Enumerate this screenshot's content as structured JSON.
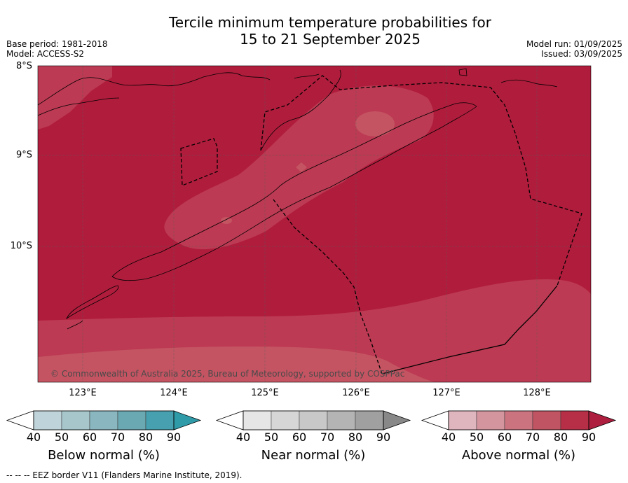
{
  "title_line1": "Tercile minimum temperature probabilities for",
  "title_line2": "15 to 21 September 2025",
  "base_period": "Base period: 1981-2018",
  "model": "Model: ACCESS-S2",
  "model_run": "Model run: 01/09/2025",
  "issued": "Issued: 03/09/2025",
  "lat_labels": [
    "8°S",
    "9°S",
    "10°S"
  ],
  "lon_labels": [
    "123°E",
    "124°E",
    "125°E",
    "126°E",
    "127°E",
    "128°E"
  ],
  "copyright": "© Commonwealth of Australia 2025, Bureau of Meteorology, supported by COSPPac",
  "footer": "--  --  -- EEZ border V11 (Flanders Marine Institute, 2019).",
  "colorbars": [
    {
      "title": "Below normal (%)",
      "ticks": [
        "40",
        "50",
        "60",
        "70",
        "80",
        "90"
      ],
      "colors": [
        "#bfd4da",
        "#a6c6cc",
        "#89b6bf",
        "#6aa8b2",
        "#47a0af",
        "#2f9aa8"
      ]
    },
    {
      "title": "Near normal (%)",
      "ticks": [
        "40",
        "50",
        "60",
        "70",
        "80",
        "90"
      ],
      "colors": [
        "#e6e6e6",
        "#d6d6d6",
        "#c8c8c8",
        "#b4b4b4",
        "#a0a0a0",
        "#888888"
      ]
    },
    {
      "title": "Above normal (%)",
      "ticks": [
        "40",
        "50",
        "60",
        "70",
        "80",
        "90"
      ],
      "colors": [
        "#e0b6be",
        "#d5959f",
        "#cb7480",
        "#c15462",
        "#b72f47",
        "#ad1e3f"
      ]
    }
  ],
  "colors": {
    "above90": "#b01c3c",
    "above80": "#bc3a53",
    "above70": "#c45462",
    "gridline": "#555555"
  }
}
